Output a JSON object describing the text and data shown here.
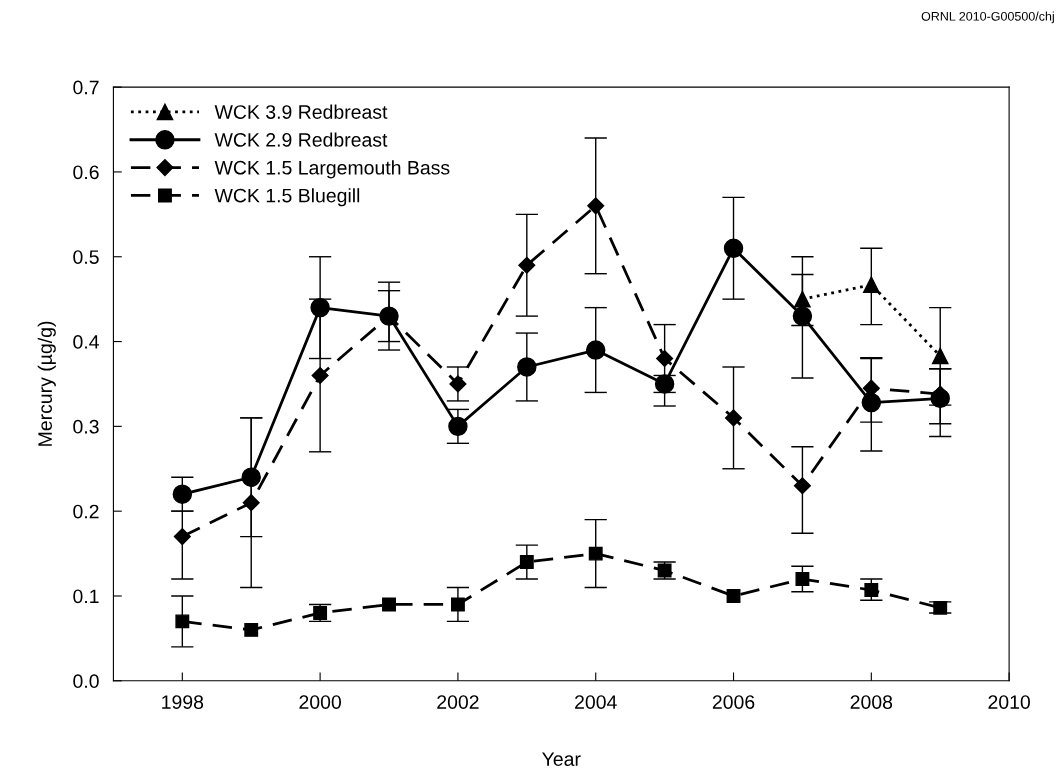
{
  "chart_data": {
    "type": "line",
    "xlabel": "Year",
    "ylabel": "Mercury (µg/g)",
    "annotations": [
      "ORNL 2010-G00500/chj"
    ],
    "xlim": [
      1997,
      2010
    ],
    "xticks": [
      1998,
      2000,
      2002,
      2004,
      2006,
      2008,
      2010
    ],
    "ylim": [
      0,
      0.7
    ],
    "yticks": [
      {
        "value": 0,
        "label": "0.0"
      },
      0.1,
      0.2,
      0.3,
      0.4,
      0.5,
      0.6,
      0.7
    ],
    "grid": false,
    "legend": "top left",
    "series": [
      {
        "name": "WCK 3.9 Redbreast",
        "color": "#000000",
        "marker": "triangle",
        "line_style": "dotted",
        "x": [
          2007,
          2008,
          2009
        ],
        "values": [
          0.45,
          0.467,
          0.383
        ],
        "errors": [
          [
            0.419,
            0.5
          ],
          [
            0.42,
            0.51
          ],
          [
            0.325,
            0.44
          ]
        ]
      },
      {
        "name": "WCK 2.9 Redbreast",
        "color": "#000000",
        "marker": "circle",
        "line_style": "solid",
        "x": [
          1998,
          1999,
          2000,
          2001,
          2002,
          2003,
          2004,
          2005,
          2006,
          2007,
          2008,
          2009
        ],
        "values": [
          0.22,
          0.24,
          0.44,
          0.43,
          0.3,
          0.37,
          0.39,
          0.35,
          0.51,
          0.43,
          0.328,
          0.333
        ],
        "errors": [
          [
            0.2,
            0.24
          ],
          [
            0.17,
            0.31
          ],
          [
            0.38,
            0.5
          ],
          [
            0.39,
            0.47
          ],
          [
            0.28,
            0.32
          ],
          [
            0.33,
            0.41
          ],
          [
            0.34,
            0.44
          ],
          [
            0.324,
            0.36
          ],
          [
            0.45,
            0.57
          ],
          [
            0.357,
            0.479
          ],
          [
            0.271,
            0.38
          ],
          [
            0.288,
            0.368
          ]
        ]
      },
      {
        "name": "WCK 1.5 Largemouth Bass",
        "color": "#000000",
        "marker": "diamond",
        "line_style": "dashed",
        "x": [
          1998,
          1999,
          2000,
          2001,
          2002,
          2003,
          2004,
          2005,
          2006,
          2007,
          2008,
          2009
        ],
        "values": [
          0.17,
          0.21,
          0.36,
          0.43,
          0.35,
          0.49,
          0.56,
          0.38,
          0.31,
          0.23,
          0.345,
          0.338
        ],
        "errors": [
          [
            0.12,
            0.2
          ],
          [
            0.11,
            0.31
          ],
          [
            0.27,
            0.45
          ],
          [
            0.4,
            0.46
          ],
          [
            0.33,
            0.37
          ],
          [
            0.43,
            0.55
          ],
          [
            0.48,
            0.64
          ],
          [
            0.34,
            0.42
          ],
          [
            0.25,
            0.37
          ],
          [
            0.174,
            0.276
          ],
          [
            0.305,
            0.381
          ],
          [
            0.303,
            0.368
          ]
        ]
      },
      {
        "name": "WCK 1.5 Bluegill",
        "color": "#000000",
        "marker": "square",
        "line_style": "dashed",
        "x": [
          1998,
          1999,
          2000,
          2001,
          2002,
          2003,
          2004,
          2005,
          2006,
          2007,
          2008,
          2009
        ],
        "values": [
          0.07,
          0.06,
          0.08,
          0.09,
          0.09,
          0.14,
          0.15,
          0.13,
          0.1,
          0.12,
          0.107,
          0.086
        ],
        "errors": [
          [
            0.04,
            0.1
          ],
          null,
          [
            0.07,
            0.09
          ],
          null,
          [
            0.07,
            0.11
          ],
          [
            0.12,
            0.16
          ],
          [
            0.11,
            0.19
          ],
          [
            0.12,
            0.14
          ],
          null,
          [
            0.105,
            0.135
          ],
          [
            0.095,
            0.12
          ],
          [
            0.08,
            0.093
          ]
        ]
      }
    ]
  }
}
